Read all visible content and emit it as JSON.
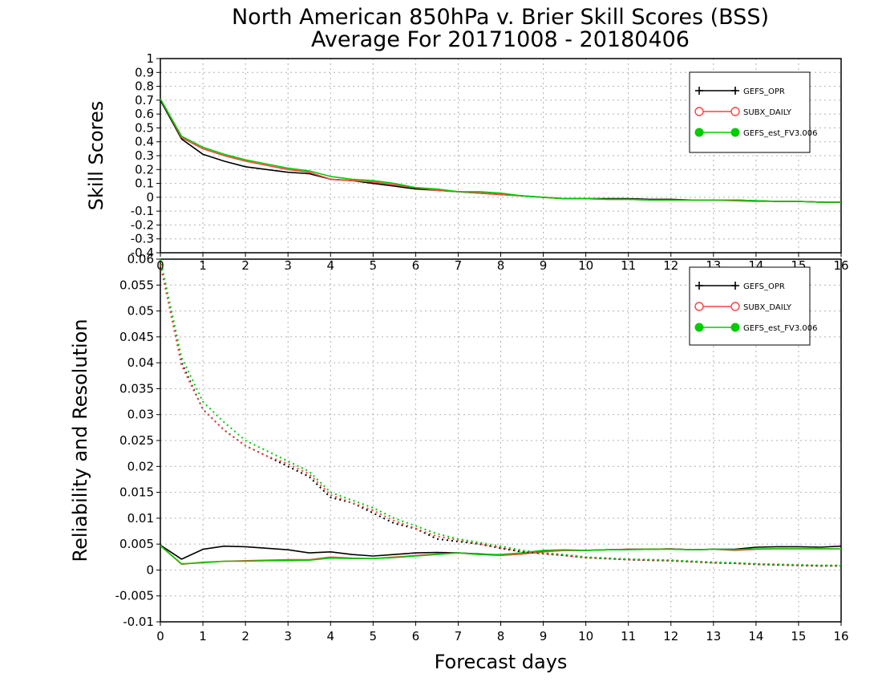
{
  "figure": {
    "title_line1": "North American 850hPa v. Brier Skill Scores (BSS)",
    "title_line2": "Average For 20171008 - 20180406"
  },
  "chart_data": [
    {
      "type": "line",
      "ylabel": "Skill Scores",
      "xlabel": "",
      "xlim": [
        0,
        16
      ],
      "ylim": [
        -0.4,
        1
      ],
      "x_ticks": [
        "0",
        "1",
        "2",
        "3",
        "4",
        "5",
        "6",
        "7",
        "8",
        "9",
        "10",
        "11",
        "12",
        "13",
        "14",
        "15",
        "16"
      ],
      "y_ticks": [
        "1",
        "0.9",
        "0.8",
        "0.7",
        "0.6",
        "0.5",
        "0.4",
        "0.3",
        "0.2",
        "0.1",
        "0",
        "-0.1",
        "-0.2",
        "-0.3",
        "-0.4"
      ],
      "grid": true,
      "legend_position": "top-right",
      "x": [
        0,
        0.5,
        1,
        1.5,
        2,
        2.5,
        3,
        3.5,
        4,
        4.5,
        5,
        5.5,
        6,
        6.5,
        7,
        7.5,
        8,
        8.5,
        9,
        9.5,
        10,
        10.5,
        11,
        11.5,
        12,
        12.5,
        13,
        13.5,
        14,
        14.5,
        15,
        15.5,
        16
      ],
      "series": [
        {
          "name": "GEFS_OPR",
          "color": "#000000",
          "style": "solid",
          "marker": "plus",
          "values": [
            0.7,
            0.42,
            0.31,
            0.26,
            0.22,
            0.2,
            0.18,
            0.17,
            0.13,
            0.12,
            0.1,
            0.08,
            0.06,
            0.05,
            0.04,
            0.03,
            0.02,
            0.01,
            0.0,
            -0.01,
            -0.01,
            -0.01,
            -0.01,
            -0.015,
            -0.015,
            -0.02,
            -0.02,
            -0.02,
            -0.025,
            -0.03,
            -0.03,
            -0.035,
            -0.035
          ]
        },
        {
          "name": "SUBX_DAILY",
          "color": "#ff4040",
          "style": "solid",
          "marker": "open-circle",
          "values": [
            0.71,
            0.43,
            0.35,
            0.3,
            0.26,
            0.23,
            0.2,
            0.18,
            0.13,
            0.12,
            0.11,
            0.09,
            0.07,
            0.05,
            0.04,
            0.03,
            0.02,
            0.01,
            0.0,
            -0.01,
            -0.01,
            -0.015,
            -0.015,
            -0.02,
            -0.02,
            -0.02,
            -0.02,
            -0.025,
            -0.03,
            -0.03,
            -0.03,
            -0.035,
            -0.035
          ]
        },
        {
          "name": "GEFS_est_FV3.006",
          "color": "#00cc00",
          "style": "solid",
          "marker": "filled-circle",
          "values": [
            0.71,
            0.44,
            0.36,
            0.31,
            0.27,
            0.24,
            0.21,
            0.19,
            0.15,
            0.13,
            0.12,
            0.1,
            0.07,
            0.06,
            0.04,
            0.04,
            0.03,
            0.01,
            0.0,
            -0.01,
            -0.01,
            -0.015,
            -0.015,
            -0.02,
            -0.02,
            -0.02,
            -0.02,
            -0.02,
            -0.025,
            -0.03,
            -0.03,
            -0.035,
            -0.035
          ]
        }
      ]
    },
    {
      "type": "line",
      "ylabel": "Reliability and Resolution",
      "xlabel": "Forecast days",
      "xlim": [
        0,
        16
      ],
      "ylim": [
        -0.01,
        0.06
      ],
      "x_ticks": [
        "0",
        "1",
        "2",
        "3",
        "4",
        "5",
        "6",
        "7",
        "8",
        "9",
        "10",
        "11",
        "12",
        "13",
        "14",
        "15",
        "16"
      ],
      "y_ticks": [
        "0.06",
        "0.055",
        "0.05",
        "0.045",
        "0.04",
        "0.035",
        "0.03",
        "0.025",
        "0.02",
        "0.015",
        "0.01",
        "0.005",
        "0",
        "-0.005",
        "-0.01"
      ],
      "grid": true,
      "legend_position": "top-right",
      "x": [
        0,
        0.5,
        1,
        1.5,
        2,
        2.5,
        3,
        3.5,
        4,
        4.5,
        5,
        5.5,
        6,
        6.5,
        7,
        7.5,
        8,
        8.5,
        9,
        9.5,
        10,
        10.5,
        11,
        11.5,
        12,
        12.5,
        13,
        13.5,
        14,
        14.5,
        15,
        15.5,
        16
      ],
      "series": [
        {
          "name": "GEFS_OPR",
          "color": "#000000",
          "style": "solid",
          "marker": "plus",
          "values": [
            0.0048,
            0.0021,
            0.004,
            0.0046,
            0.0045,
            0.0042,
            0.0039,
            0.0033,
            0.0035,
            0.003,
            0.0027,
            0.003,
            0.0033,
            0.0034,
            0.0033,
            0.0031,
            0.0029,
            0.0031,
            0.0036,
            0.0038,
            0.0038,
            0.0039,
            0.004,
            0.004,
            0.0041,
            0.0039,
            0.004,
            0.004,
            0.0044,
            0.0045,
            0.0045,
            0.0044,
            0.0046
          ]
        },
        {
          "name": "SUBX_DAILY",
          "color": "#ff4040",
          "style": "solid",
          "marker": "open-circle",
          "values": [
            0.0047,
            0.0011,
            0.0015,
            0.0017,
            0.0018,
            0.0019,
            0.002,
            0.002,
            0.0025,
            0.0023,
            0.0022,
            0.0025,
            0.0028,
            0.0031,
            0.0033,
            0.003,
            0.0028,
            0.0031,
            0.0035,
            0.0038,
            0.0038,
            0.0039,
            0.004,
            0.004,
            0.0041,
            0.0039,
            0.004,
            0.0038,
            0.004,
            0.0041,
            0.0041,
            0.0041,
            0.0041
          ]
        },
        {
          "name": "GEFS_est_FV3.006",
          "color": "#00cc00",
          "style": "solid",
          "marker": "filled-circle",
          "values": [
            0.0047,
            0.0012,
            0.0014,
            0.0017,
            0.0017,
            0.0018,
            0.0018,
            0.0019,
            0.0023,
            0.0022,
            0.0022,
            0.0024,
            0.0027,
            0.003,
            0.0033,
            0.003,
            0.003,
            0.0033,
            0.0038,
            0.0039,
            0.0038,
            0.0039,
            0.0039,
            0.004,
            0.004,
            0.0039,
            0.004,
            0.0039,
            0.0041,
            0.0041,
            0.0041,
            0.0041,
            0.0041
          ]
        },
        {
          "name": "GEFS_OPR",
          "color": "#000000",
          "style": "dotted",
          "marker": "none",
          "values": [
            0.059,
            0.04,
            0.031,
            0.027,
            0.024,
            0.022,
            0.02,
            0.018,
            0.014,
            0.013,
            0.011,
            0.009,
            0.008,
            0.006,
            0.0055,
            0.005,
            0.0042,
            0.0035,
            0.0032,
            0.0028,
            0.0024,
            0.0022,
            0.002,
            0.0019,
            0.0018,
            0.0016,
            0.0014,
            0.0013,
            0.0011,
            0.001,
            0.0009,
            0.0008,
            0.0008
          ]
        },
        {
          "name": "SUBX_DAILY",
          "color": "#ff4040",
          "style": "dotted",
          "marker": "none",
          "values": [
            0.059,
            0.0395,
            0.031,
            0.027,
            0.024,
            0.022,
            0.0205,
            0.0185,
            0.0145,
            0.013,
            0.0115,
            0.0095,
            0.008,
            0.0065,
            0.0058,
            0.005,
            0.0043,
            0.0036,
            0.0031,
            0.0028,
            0.0024,
            0.0022,
            0.002,
            0.0019,
            0.0018,
            0.0016,
            0.0014,
            0.0013,
            0.0011,
            0.001,
            0.0009,
            0.0008,
            0.0008
          ]
        },
        {
          "name": "GEFS_est_FV3.006",
          "color": "#00cc00",
          "style": "dotted",
          "marker": "none",
          "values": [
            0.06,
            0.041,
            0.0325,
            0.0285,
            0.025,
            0.023,
            0.021,
            0.019,
            0.015,
            0.0135,
            0.012,
            0.01,
            0.0085,
            0.007,
            0.006,
            0.0053,
            0.0046,
            0.0038,
            0.0033,
            0.003,
            0.0025,
            0.0023,
            0.0021,
            0.002,
            0.0019,
            0.0017,
            0.0015,
            0.0014,
            0.0012,
            0.0011,
            0.001,
            0.0009,
            0.0009
          ]
        }
      ]
    }
  ],
  "legends": [
    {
      "items": [
        {
          "label": "GEFS_OPR",
          "color": "#000000",
          "marker": "plus"
        },
        {
          "label": "SUBX_DAILY",
          "color": "#ff4040",
          "marker": "open-circle"
        },
        {
          "label": "GEFS_est_FV3.006",
          "color": "#00cc00",
          "marker": "filled-circle"
        }
      ]
    },
    {
      "items": [
        {
          "label": "GEFS_OPR",
          "color": "#000000",
          "marker": "plus"
        },
        {
          "label": "SUBX_DAILY",
          "color": "#ff4040",
          "marker": "open-circle"
        },
        {
          "label": "GEFS_est_FV3.006",
          "color": "#00cc00",
          "marker": "filled-circle"
        }
      ]
    }
  ]
}
